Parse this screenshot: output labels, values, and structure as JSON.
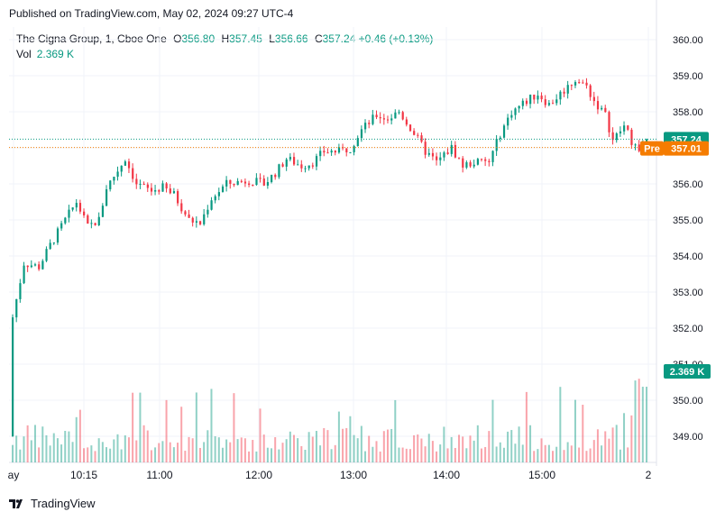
{
  "header": {
    "published": "Published on TradingView.com, May 02, 2024 09:27 UTC-4"
  },
  "legend": {
    "symbol": "The Cigna Group, 1, Cboe One",
    "open_label": "O",
    "open": "356.80",
    "high_label": "H",
    "high": "357.45",
    "low_label": "L",
    "low": "356.66",
    "close_label": "C",
    "close": "357.24",
    "change": "+0.46 (+0.13%)",
    "vol_label": "Vol",
    "vol": "2.369 K"
  },
  "tags": {
    "last_price": "357.24",
    "pre_label": "Pre",
    "pre_price": "357.01",
    "volume": "2.369 K"
  },
  "footer": {
    "brand": "TradingView"
  },
  "colors": {
    "up": "#089981",
    "down": "#f23645",
    "pre": "#f57c00",
    "grid": "#f0f3fa"
  },
  "chart_data": {
    "type": "candlestick",
    "y_ticks": [
      "360.00",
      "359.00",
      "358.00",
      "357.00",
      "356.00",
      "355.00",
      "354.00",
      "353.00",
      "352.00",
      "351.00",
      "350.00",
      "349.00"
    ],
    "x_ticks": [
      "ay",
      "10:15",
      "11:00",
      "12:00",
      "13:00",
      "14:00",
      "15:00",
      "2"
    ],
    "ylim": [
      348.1,
      360.5
    ],
    "last_price": 357.24,
    "pre_price": 357.01,
    "close_path": [
      {
        "t": 0,
        "p": 352.3
      },
      {
        "t": 3,
        "p": 353.8
      },
      {
        "t": 7,
        "p": 353.7
      },
      {
        "t": 10,
        "p": 354.3
      },
      {
        "t": 14,
        "p": 355.0
      },
      {
        "t": 17,
        "p": 355.5
      },
      {
        "t": 20,
        "p": 354.8
      },
      {
        "t": 23,
        "p": 355.0
      },
      {
        "t": 25,
        "p": 355.9
      },
      {
        "t": 30,
        "p": 356.7
      },
      {
        "t": 33,
        "p": 356.0
      },
      {
        "t": 37,
        "p": 355.8
      },
      {
        "t": 40,
        "p": 355.9
      },
      {
        "t": 43,
        "p": 355.7
      },
      {
        "t": 47,
        "p": 355.0
      },
      {
        "t": 50,
        "p": 354.9
      },
      {
        "t": 53,
        "p": 355.6
      },
      {
        "t": 57,
        "p": 356.0
      },
      {
        "t": 63,
        "p": 356.1
      },
      {
        "t": 67,
        "p": 356.0
      },
      {
        "t": 70,
        "p": 356.3
      },
      {
        "t": 73,
        "p": 356.7
      },
      {
        "t": 77,
        "p": 356.5
      },
      {
        "t": 80,
        "p": 356.6
      },
      {
        "t": 83,
        "p": 356.9
      },
      {
        "t": 87,
        "p": 356.9
      },
      {
        "t": 90,
        "p": 357.0
      },
      {
        "t": 93,
        "p": 357.5
      },
      {
        "t": 97,
        "p": 357.9
      },
      {
        "t": 100,
        "p": 357.8
      },
      {
        "t": 103,
        "p": 358.0
      },
      {
        "t": 107,
        "p": 357.4
      },
      {
        "t": 110,
        "p": 356.9
      },
      {
        "t": 113,
        "p": 356.6
      },
      {
        "t": 117,
        "p": 357.0
      },
      {
        "t": 120,
        "p": 356.5
      },
      {
        "t": 123,
        "p": 356.6
      },
      {
        "t": 127,
        "p": 356.6
      },
      {
        "t": 130,
        "p": 357.4
      },
      {
        "t": 133,
        "p": 358.0
      },
      {
        "t": 137,
        "p": 358.3
      },
      {
        "t": 140,
        "p": 358.5
      },
      {
        "t": 143,
        "p": 358.2
      },
      {
        "t": 147,
        "p": 358.6
      },
      {
        "t": 150,
        "p": 358.9
      },
      {
        "t": 153,
        "p": 358.7
      },
      {
        "t": 155,
        "p": 358.3
      },
      {
        "t": 158,
        "p": 357.9
      },
      {
        "t": 160,
        "p": 357.2
      },
      {
        "t": 163,
        "p": 357.6
      },
      {
        "t": 165,
        "p": 357.2
      },
      {
        "t": 167,
        "p": 356.9
      },
      {
        "t": 169,
        "p": 357.24
      }
    ]
  }
}
